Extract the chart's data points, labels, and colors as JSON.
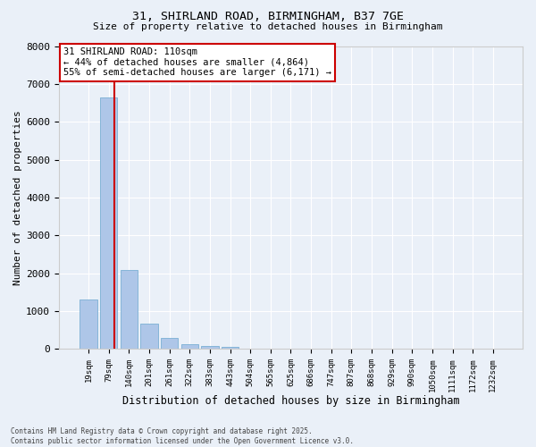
{
  "title_line1": "31, SHIRLAND ROAD, BIRMINGHAM, B37 7GE",
  "title_line2": "Size of property relative to detached houses in Birmingham",
  "xlabel": "Distribution of detached houses by size in Birmingham",
  "ylabel": "Number of detached properties",
  "categories": [
    "19sqm",
    "79sqm",
    "140sqm",
    "201sqm",
    "261sqm",
    "322sqm",
    "383sqm",
    "443sqm",
    "504sqm",
    "565sqm",
    "625sqm",
    "686sqm",
    "747sqm",
    "807sqm",
    "868sqm",
    "929sqm",
    "990sqm",
    "1050sqm",
    "1111sqm",
    "1172sqm",
    "1232sqm"
  ],
  "values": [
    1300,
    6650,
    2100,
    680,
    300,
    130,
    90,
    60,
    0,
    0,
    0,
    0,
    0,
    0,
    0,
    0,
    0,
    0,
    0,
    0,
    0
  ],
  "bar_color": "#aec6e8",
  "bar_edge_color": "#7aafd4",
  "vline_color": "#cc0000",
  "vline_x": 1.28,
  "annotation_text": "31 SHIRLAND ROAD: 110sqm\n← 44% of detached houses are smaller (4,864)\n55% of semi-detached houses are larger (6,171) →",
  "annotation_box_color": "#ffffff",
  "annotation_box_edge": "#cc0000",
  "ylim": [
    0,
    8000
  ],
  "yticks": [
    0,
    1000,
    2000,
    3000,
    4000,
    5000,
    6000,
    7000,
    8000
  ],
  "background_color": "#eaf0f8",
  "grid_color": "#ffffff",
  "footer_line1": "Contains HM Land Registry data © Crown copyright and database right 2025.",
  "footer_line2": "Contains public sector information licensed under the Open Government Licence v3.0."
}
